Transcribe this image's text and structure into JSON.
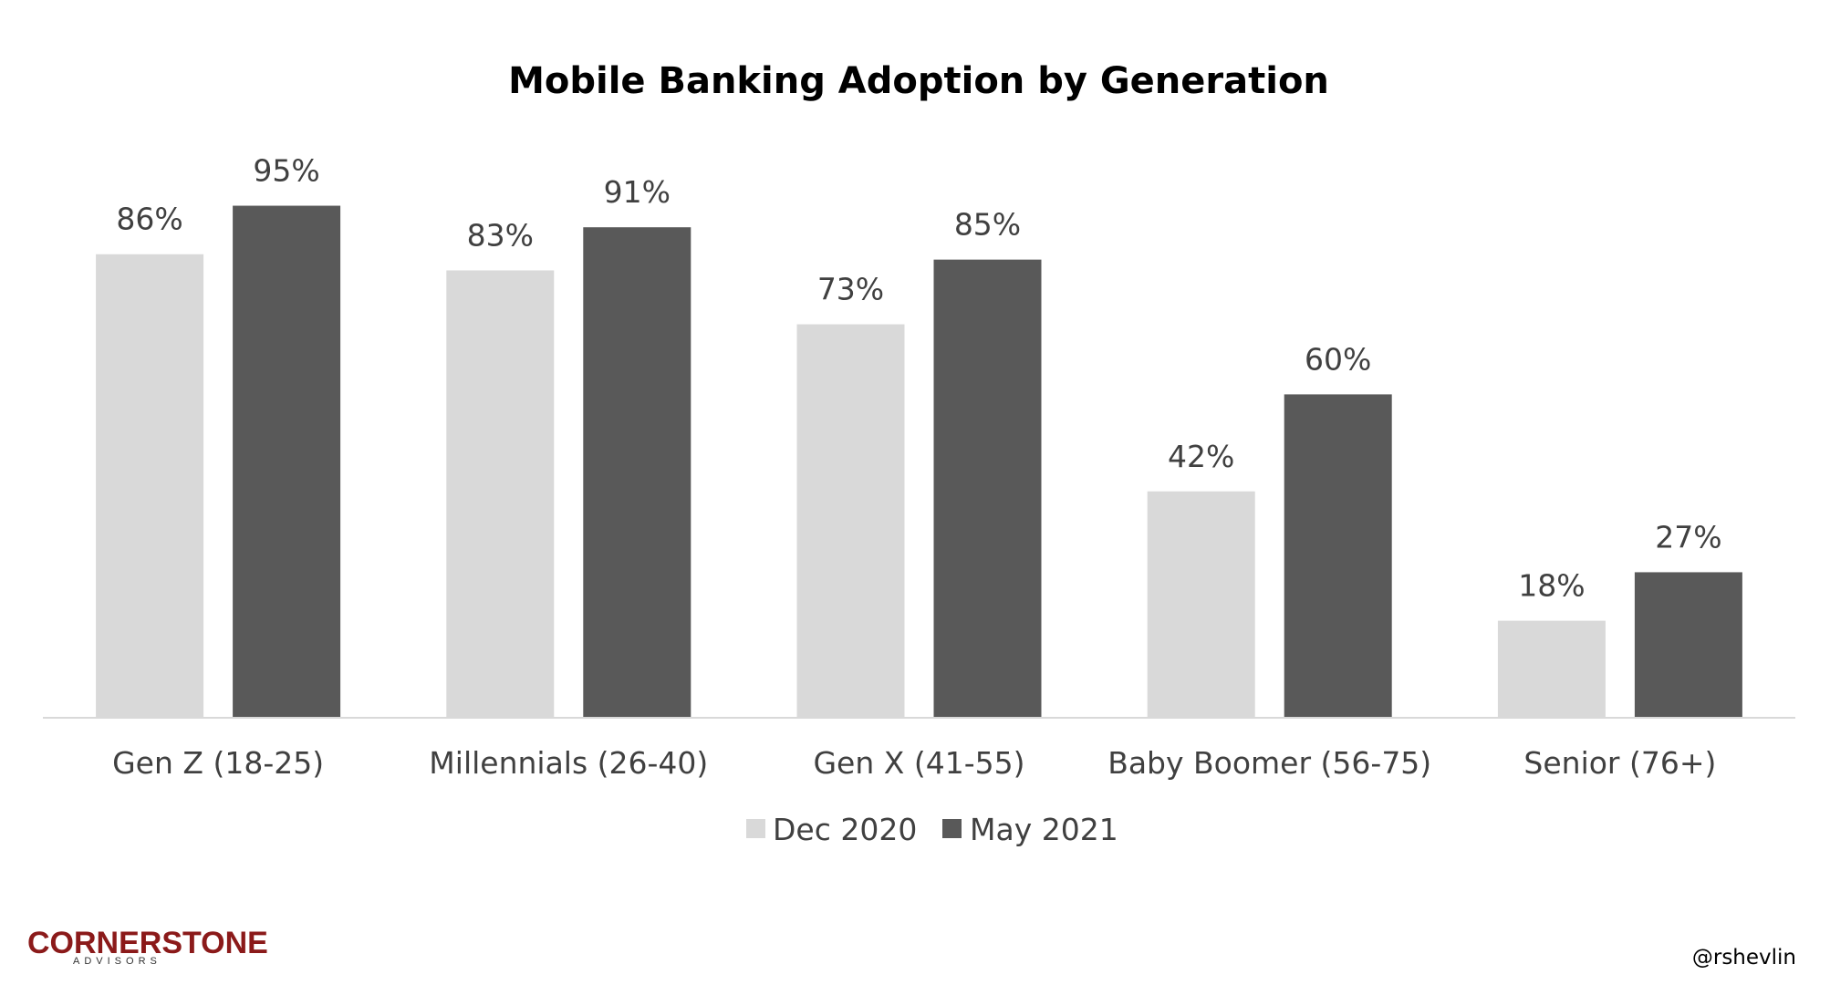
{
  "chart_data": {
    "type": "bar",
    "title": "Mobile Banking Adoption by Generation",
    "xlabel": "",
    "ylabel": "",
    "ylim": [
      0,
      100
    ],
    "grid": false,
    "legend_position": "bottom",
    "categories": [
      "Gen Z (18-25)",
      "Millennials (26-40)",
      "Gen X (41-55)",
      "Baby Boomer (56-75)",
      "Senior (76+)"
    ],
    "series": [
      {
        "name": "Dec 2020",
        "values": [
          86,
          83,
          73,
          42,
          18
        ],
        "labels": [
          "86%",
          "83%",
          "73%",
          "42%",
          "18%"
        ],
        "color": "#d9d9d9"
      },
      {
        "name": "May 2021",
        "values": [
          95,
          91,
          85,
          60,
          27
        ],
        "labels": [
          "95%",
          "91%",
          "85%",
          "60%",
          "27%"
        ],
        "color": "#595959"
      }
    ]
  },
  "branding": {
    "logo_main": "CORNERSTONE",
    "logo_sub": "ADVISORS",
    "handle": "@rshevlin"
  },
  "colors": {
    "axis": "#d9d9d9",
    "text": "#404040",
    "logo": "#8b1a1a"
  }
}
